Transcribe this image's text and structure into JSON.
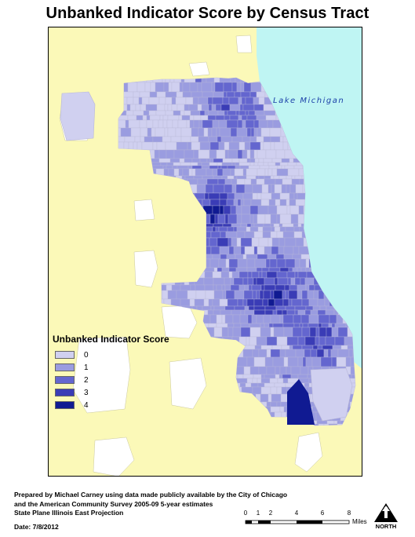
{
  "title": "Unbanked Indicator Score by Census Tract",
  "map": {
    "water_label": "Lake Michigan",
    "colors": {
      "land": "#fbf9b8",
      "water": "#bff5f3",
      "other": "#ffffff",
      "outline": "#b8b7d8"
    }
  },
  "legend": {
    "title": "Unbanked Indicator Score",
    "classes": [
      {
        "label": "0",
        "color": "#d0d0f0"
      },
      {
        "label": "1",
        "color": "#9a9ce0"
      },
      {
        "label": "2",
        "color": "#6466cf"
      },
      {
        "label": "3",
        "color": "#3a3cb6"
      },
      {
        "label": "4",
        "color": "#101a92"
      }
    ]
  },
  "footer": {
    "lines": [
      "Prepared by Michael Carney using data made publicly available by the City of Chicago",
      "and the American Community Survey 2005-09 5-year estimates",
      "State Plane Illinois East Projection"
    ],
    "date": "Date: 7/8/2012"
  },
  "scale_bar": {
    "units": "Miles",
    "ticks": [
      "0",
      "1",
      "2",
      "4",
      "6",
      "8"
    ]
  },
  "north_arrow": {
    "label": "NORTH"
  }
}
